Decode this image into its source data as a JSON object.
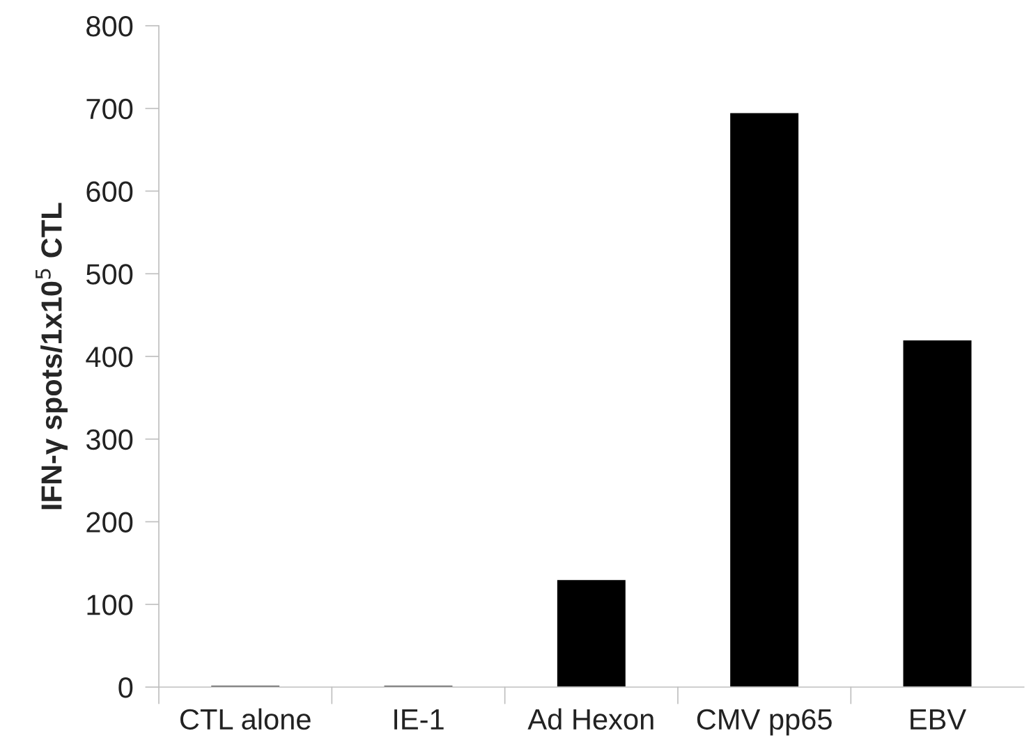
{
  "chart_data": {
    "type": "bar",
    "ylabel": "IFN-γ spots/1x10$^{5}$ CTL",
    "categories": [
      "CTL alone",
      "IE-1",
      "Ad Hexon",
      "CMV pp65",
      "EBV"
    ],
    "values": [
      2,
      2,
      130,
      695,
      420
    ],
    "color": "#000000",
    "ylim": [
      0,
      800
    ],
    "yticks": [
      0,
      100,
      200,
      300,
      400,
      500,
      600,
      700,
      800
    ],
    "grid": false,
    "legend": false
  }
}
